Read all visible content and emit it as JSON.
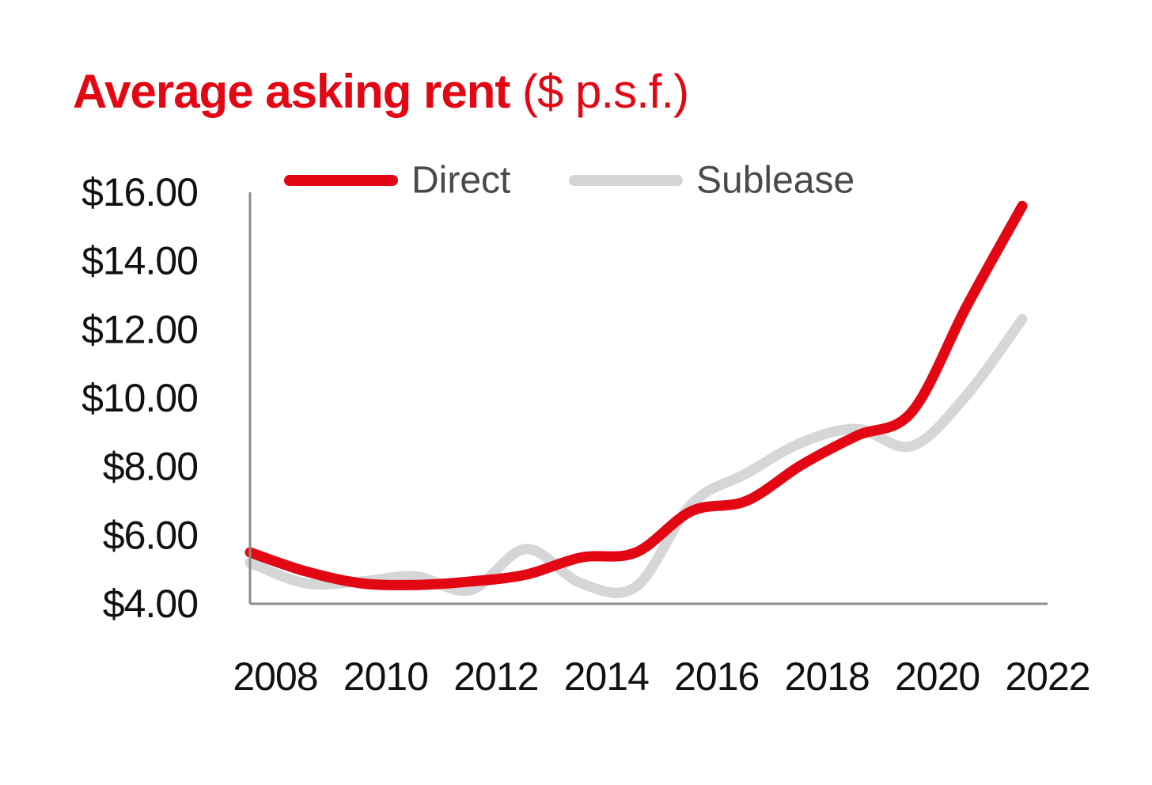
{
  "colors": {
    "title": "#e30613",
    "direct": "#e30613",
    "sublease": "#d5d6d8",
    "axis": "#8c8c8c",
    "tick_text": "#111111",
    "legend_text": "#4a4a4a"
  },
  "chart_data": {
    "type": "line",
    "title": "Average asking rent",
    "title_unit": "($ p.s.f.)",
    "xlabel": "",
    "ylabel": "",
    "x_ticks": [
      "2008",
      "2010",
      "2012",
      "2014",
      "2016",
      "2018",
      "2020",
      "2022"
    ],
    "y_ticks": [
      "$16.00",
      "$14.00",
      "$12.00",
      "$10.00",
      "$8.00",
      "$6.00",
      "$4.00"
    ],
    "xlim": [
      2008,
      2022
    ],
    "ylim": [
      4,
      16
    ],
    "grid": false,
    "legend_position": "top",
    "series": [
      {
        "name": "Direct",
        "color": "#e30613",
        "x": [
          2008,
          2009,
          2010,
          2011,
          2012,
          2013,
          2014,
          2015,
          2016,
          2017,
          2018,
          2019,
          2020,
          2021,
          2022
        ],
        "values": [
          5.5,
          4.95,
          4.6,
          4.55,
          4.65,
          4.85,
          5.35,
          5.5,
          6.7,
          7.0,
          8.05,
          8.9,
          9.6,
          12.7,
          15.6
        ]
      },
      {
        "name": "Sublease",
        "color": "#d5d6d8",
        "x": [
          2008,
          2009,
          2010,
          2011,
          2012,
          2013,
          2014,
          2015,
          2016,
          2017,
          2018,
          2019,
          2020,
          2021,
          2022
        ],
        "values": [
          5.2,
          4.6,
          4.65,
          4.8,
          4.4,
          5.6,
          4.6,
          4.5,
          6.9,
          7.8,
          8.7,
          9.1,
          8.6,
          10.1,
          12.3
        ]
      }
    ]
  }
}
